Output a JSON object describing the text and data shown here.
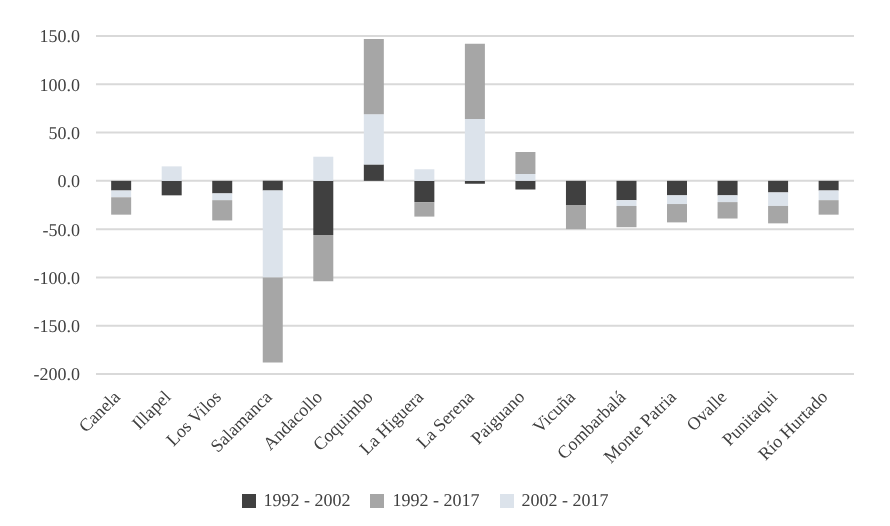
{
  "chart_data": {
    "type": "bar",
    "stacked": true,
    "categories": [
      "Canela",
      "Illapel",
      "Los Vilos",
      "Salamanca",
      "Andacollo",
      "Coquimbo",
      "La Higuera",
      "La Serena",
      "Paiguano",
      "Vicuña",
      "Combarbalá",
      "Monte Patria",
      "Ovalle",
      "Punitaqui",
      "Río Hurtado"
    ],
    "series": [
      {
        "name": "1992 - 2002",
        "color": "#404040",
        "values": [
          -10,
          -15,
          -13,
          -10,
          -56,
          17,
          -22,
          -3,
          -9,
          -25,
          -20,
          -15,
          -15,
          -12,
          -10
        ]
      },
      {
        "name": "2002 - 2017",
        "color": "#dce3eb",
        "values": [
          -7,
          15,
          -7,
          -90,
          25,
          52,
          12,
          64,
          7,
          null,
          -6,
          -9,
          -7,
          -14,
          -10
        ]
      },
      {
        "name": "1992 - 2017",
        "color": "#a6a6a6",
        "values": [
          -18,
          0,
          -21,
          -88,
          -48,
          78,
          -15,
          78,
          23,
          -25,
          -22,
          -19,
          -17,
          -18,
          -15
        ]
      }
    ],
    "ylim": [
      -200,
      150
    ],
    "yticks": [
      {
        "value": -200,
        "label": "-200.0"
      },
      {
        "value": -150,
        "label": "-150.0"
      },
      {
        "value": -100,
        "label": "-100.0"
      },
      {
        "value": -50,
        "label": "-50.0"
      },
      {
        "value": 0,
        "label": "0.0"
      },
      {
        "value": 50,
        "label": "50.0"
      },
      {
        "value": 100,
        "label": "100.0"
      },
      {
        "value": 150,
        "label": "150.0"
      }
    ],
    "grid": "y",
    "legend": "bottom"
  }
}
